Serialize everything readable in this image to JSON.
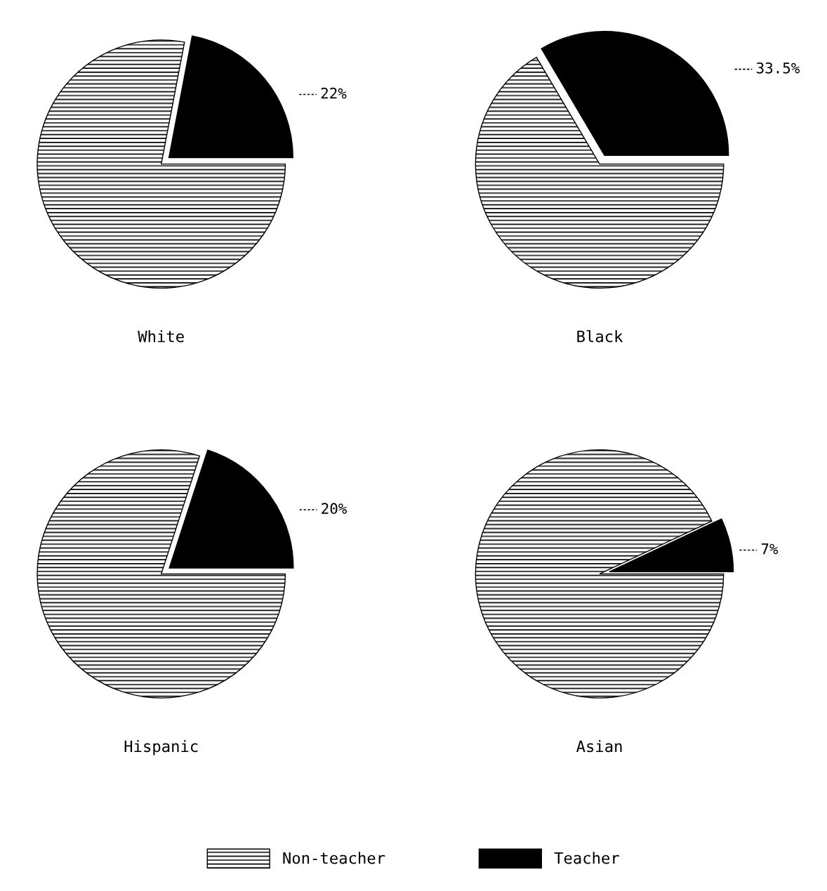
{
  "chart_data": [
    {
      "type": "pie",
      "title": "White",
      "categories": [
        null,
        null
      ],
      "values": [
        78,
        22
      ],
      "colors": [
        "#ffffff",
        "#000000"
      ],
      "value_labels": [
        null,
        "22%"
      ]
    },
    {
      "type": "pie",
      "title": "Black",
      "categories": [
        null,
        null
      ],
      "values": [
        66.5,
        33.5
      ],
      "colors": [
        "#ffffff",
        "#000000"
      ],
      "value_labels": [
        null,
        "33.5%"
      ]
    },
    {
      "type": "pie",
      "title": "Hispanic",
      "categories": [
        null,
        null
      ],
      "values": [
        80,
        20
      ],
      "colors": [
        "#ffffff",
        "#000000"
      ],
      "value_labels": [
        null,
        "20%"
      ]
    },
    {
      "type": "pie",
      "title": "Asian",
      "categories": [
        "Non-teacher",
        "Teacher"
      ],
      "values": [
        93,
        7
      ],
      "colors": [
        "#ffffff",
        "#000000"
      ],
      "value_labels": [
        null,
        "7%"
      ],
      "legend": "bottom"
    }
  ]
}
